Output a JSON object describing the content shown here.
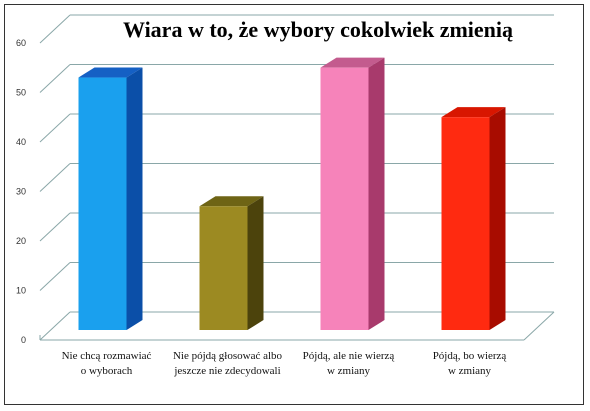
{
  "chart_data": {
    "type": "bar",
    "title": "Wiara w to, że wybory cokolwiek zmienią",
    "xlabel": "",
    "ylabel": "",
    "ylim": [
      0,
      60
    ],
    "yticks": [
      "0",
      "10",
      "20",
      "30",
      "40",
      "50",
      "60"
    ],
    "grid": true,
    "legend": "none",
    "categories": [
      [
        "Nie chcą rozmawiać",
        "o wyborach"
      ],
      [
        "Nie pójdą głosować albo",
        "jeszcze nie zdecydowali"
      ],
      [
        "Pójdą, ale nie wierzą",
        "w zmiany"
      ],
      [
        "Pójdą, bo wierzą",
        "w zmiany"
      ]
    ],
    "values": [
      51,
      25,
      53,
      43
    ],
    "colors": [
      {
        "front": "#1aa0ee",
        "side": "#0b4fa8",
        "top": "#1560c4"
      },
      {
        "front": "#9c8a22",
        "side": "#4c430c",
        "top": "#6e6415"
      },
      {
        "front": "#f683ba",
        "side": "#a83a6c",
        "top": "#c35b8e"
      },
      {
        "front": "#ff2a10",
        "side": "#a80c00",
        "top": "#d81600"
      }
    ]
  }
}
